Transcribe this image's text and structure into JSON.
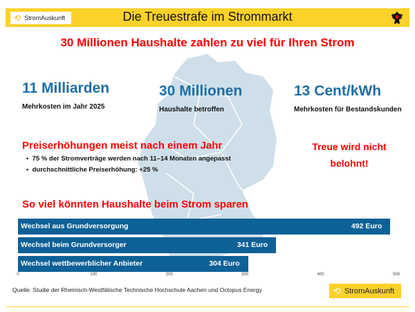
{
  "header": {
    "brand": "StromAuskunft",
    "title": "Die Treuestrafe im Strommarkt",
    "emblem_icon": "german-eagle-icon",
    "color": "#fcd12a"
  },
  "headline": "30 Millionen Haushalte zahlen zu viel für Ihren Strom",
  "stats": [
    {
      "value": "11 Milliarden",
      "label": "Mehrkosten  im Jahr 2025"
    },
    {
      "value": "30 Millionen",
      "label": "Haushalte betroffen"
    },
    {
      "value": "13 Cent/kWh",
      "label": "Mehrkosten für Bestandskunden"
    }
  ],
  "price_section": {
    "heading": "Preiserhöhungen meist nach einem Jahr",
    "bullets": [
      "75 % der Stromverträge werden nach 11–14 Monaten angepasst",
      "durchschnittliche Preiserhöhung: +25 %"
    ]
  },
  "loyalty": {
    "line1": "Treue wird nicht",
    "line2": "belohnt!"
  },
  "chart_data": {
    "type": "bar",
    "orientation": "horizontal",
    "title": "So viel könnten Haushalte beim Strom sparen",
    "categories": [
      "Wechsel aus Grundversorgung",
      "Wechsel beim Grundversorger",
      "Wechsel wettbewerblicher Anbieter"
    ],
    "values": [
      492,
      341,
      304
    ],
    "value_labels": [
      "492 Euro",
      "341 Euro",
      "304 Euro"
    ],
    "xlim": [
      0,
      500
    ],
    "ticks": [
      "0",
      "100",
      "200",
      "300",
      "400",
      "500"
    ],
    "bar_color": "#0e6197",
    "grid": false
  },
  "footer": {
    "source": "Quelle: Studie der Rheinisch-Westfälische Technische Hochschule Aachen und Octopus Energy",
    "brand": "StromAuskunft"
  }
}
